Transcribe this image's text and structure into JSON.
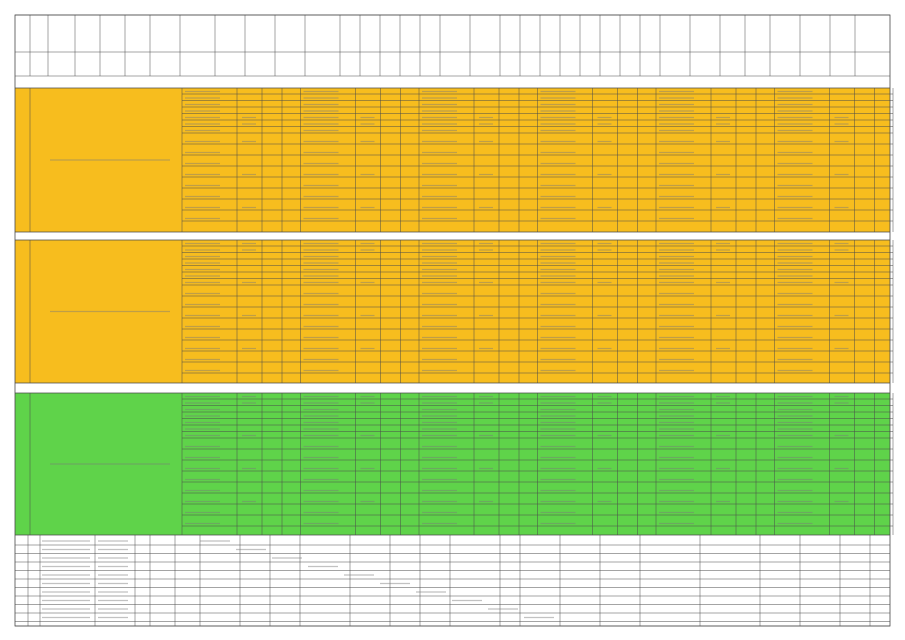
{
  "sheet": {
    "bands": [
      {
        "color": "#ffffff"
      },
      {
        "color": "#f7bd1e"
      },
      {
        "color": "#ffffff"
      },
      {
        "color": "#f7bd1e"
      },
      {
        "color": "#ffffff"
      },
      {
        "color": "#5fd34a"
      },
      {
        "color": "#ffffff"
      }
    ]
  }
}
